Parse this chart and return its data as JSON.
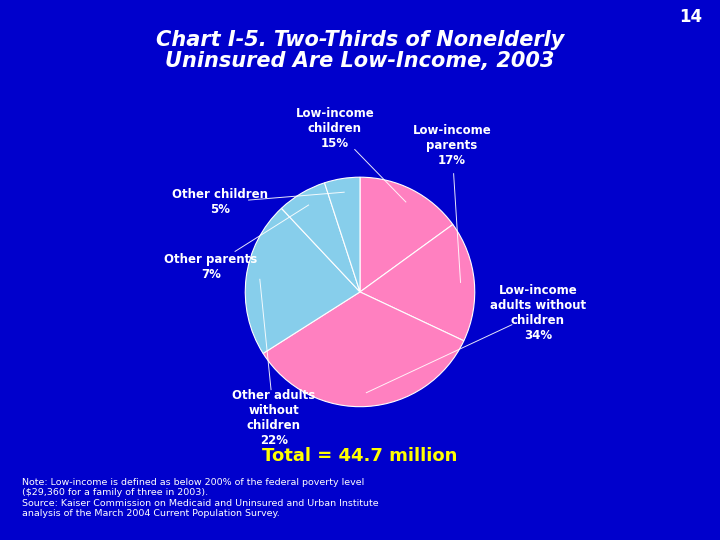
{
  "title_line1": "Chart I-5. Two-Thirds of Nonelderly",
  "title_line2": "Uninsured Are Low-Income, 2003",
  "title_fontsize": 15,
  "background_color": "#0000CC",
  "slices": [
    {
      "label": "Low-income\nchildren\n15%",
      "value": 15,
      "color": "#FF80C0"
    },
    {
      "label": "Low-income\nparents\n17%",
      "value": 17,
      "color": "#FF80C0"
    },
    {
      "label": "Low-income\nadults without\nchildren\n34%",
      "value": 34,
      "color": "#FF80C0"
    },
    {
      "label": "Other adults\nwithout\nchildren\n22%",
      "value": 22,
      "color": "#87CEEB"
    },
    {
      "label": "Other parents\n7%",
      "value": 7,
      "color": "#87CEEB"
    },
    {
      "label": "Other children\n5%",
      "value": 5,
      "color": "#87CEEB"
    }
  ],
  "total_label": "Total = 44.7 million",
  "note_text": "Note: Low-income is defined as below 200% of the federal poverty level\n($29,360 for a family of three in 2003).\nSource: Kaiser Commission on Medicaid and Uninsured and Urban Institute\nanalysis of the March 2004 Current Population Survey.",
  "page_number": "14",
  "label_color": "#FFFFFF",
  "total_color": "#FFFF00",
  "note_color": "#FFFFFF"
}
